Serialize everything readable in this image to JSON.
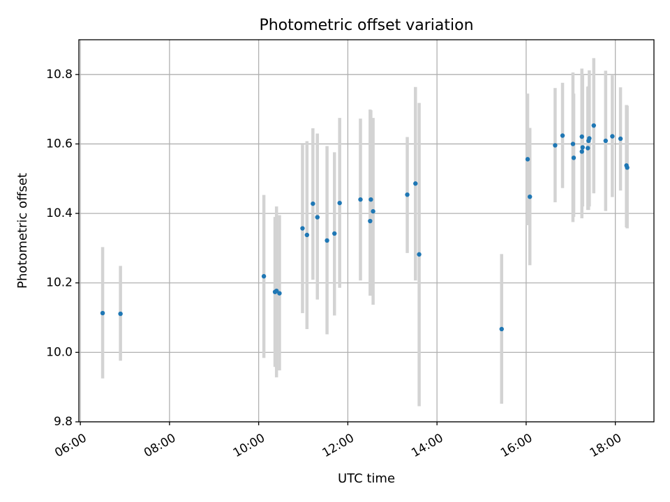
{
  "chart_data": {
    "type": "scatter",
    "title": "Photometric offset variation",
    "xlabel": "UTC time",
    "ylabel": "Photometric offset",
    "x_axis_type": "time",
    "xlim": [
      "05:58",
      "18:52"
    ],
    "ylim": [
      9.8,
      10.9
    ],
    "xticks": [
      "06:00",
      "08:00",
      "10:00",
      "12:00",
      "14:00",
      "16:00",
      "18:00"
    ],
    "yticks": [
      9.8,
      10.0,
      10.2,
      10.4,
      10.6,
      10.8
    ],
    "ytick_labels": [
      "9.8",
      "10.0",
      "10.2",
      "10.4",
      "10.6",
      "10.8"
    ],
    "grid": true,
    "legend": false,
    "colors": {
      "marker": "#1f77b4",
      "errorbar": "#d3d3d3",
      "grid": "#b0b0b0"
    },
    "points": [
      {
        "x": "06:30",
        "y": 10.113,
        "low": 9.925,
        "high": 10.303
      },
      {
        "x": "06:54",
        "y": 10.111,
        "low": 9.976,
        "high": 10.249
      },
      {
        "x": "10:07",
        "y": 10.219,
        "low": 9.984,
        "high": 10.453
      },
      {
        "x": "10:22",
        "y": 10.174,
        "low": 9.958,
        "high": 10.39
      },
      {
        "x": "10:24",
        "y": 10.177,
        "low": 9.928,
        "high": 10.42
      },
      {
        "x": "10:28",
        "y": 10.17,
        "low": 9.948,
        "high": 10.395
      },
      {
        "x": "10:59",
        "y": 10.357,
        "low": 10.113,
        "high": 10.598
      },
      {
        "x": "11:05",
        "y": 10.338,
        "low": 10.067,
        "high": 10.608
      },
      {
        "x": "11:13",
        "y": 10.428,
        "low": 10.209,
        "high": 10.645
      },
      {
        "x": "11:19",
        "y": 10.389,
        "low": 10.152,
        "high": 10.63
      },
      {
        "x": "11:32",
        "y": 10.322,
        "low": 10.052,
        "high": 10.594
      },
      {
        "x": "11:42",
        "y": 10.342,
        "low": 10.106,
        "high": 10.576
      },
      {
        "x": "11:49",
        "y": 10.43,
        "low": 10.186,
        "high": 10.675
      },
      {
        "x": "12:17",
        "y": 10.44,
        "low": 10.207,
        "high": 10.673
      },
      {
        "x": "12:30",
        "y": 10.378,
        "low": 10.163,
        "high": 10.699
      },
      {
        "x": "12:31",
        "y": 10.44,
        "low": 10.178,
        "high": 10.697
      },
      {
        "x": "12:34",
        "y": 10.406,
        "low": 10.137,
        "high": 10.675
      },
      {
        "x": "13:20",
        "y": 10.454,
        "low": 10.286,
        "high": 10.62
      },
      {
        "x": "13:31",
        "y": 10.486,
        "low": 10.207,
        "high": 10.764
      },
      {
        "x": "13:36",
        "y": 10.282,
        "low": 9.845,
        "high": 10.718
      },
      {
        "x": "15:27",
        "y": 10.067,
        "low": 9.852,
        "high": 10.283
      },
      {
        "x": "16:02",
        "y": 10.556,
        "low": 10.366,
        "high": 10.745
      },
      {
        "x": "16:05",
        "y": 10.448,
        "low": 10.251,
        "high": 10.646
      },
      {
        "x": "16:39",
        "y": 10.596,
        "low": 10.432,
        "high": 10.761
      },
      {
        "x": "16:49",
        "y": 10.624,
        "low": 10.473,
        "high": 10.776
      },
      {
        "x": "17:03",
        "y": 10.6,
        "low": 10.375,
        "high": 10.806
      },
      {
        "x": "17:04",
        "y": 10.56,
        "low": 10.39,
        "high": 10.745
      },
      {
        "x": "17:15",
        "y": 10.578,
        "low": 10.386,
        "high": 10.79
      },
      {
        "x": "17:15",
        "y": 10.621,
        "low": 10.426,
        "high": 10.817
      },
      {
        "x": "17:16",
        "y": 10.59,
        "low": 10.42,
        "high": 10.8
      },
      {
        "x": "17:23",
        "y": 10.588,
        "low": 10.41,
        "high": 10.765
      },
      {
        "x": "17:24",
        "y": 10.609,
        "low": 10.41,
        "high": 10.766
      },
      {
        "x": "17:25",
        "y": 10.616,
        "low": 10.42,
        "high": 10.812
      },
      {
        "x": "17:31",
        "y": 10.653,
        "low": 10.458,
        "high": 10.847
      },
      {
        "x": "17:47",
        "y": 10.609,
        "low": 10.407,
        "high": 10.811
      },
      {
        "x": "17:56",
        "y": 10.622,
        "low": 10.447,
        "high": 10.8
      },
      {
        "x": "18:07",
        "y": 10.615,
        "low": 10.466,
        "high": 10.763
      },
      {
        "x": "18:15",
        "y": 10.538,
        "low": 10.36,
        "high": 10.712
      },
      {
        "x": "18:16",
        "y": 10.532,
        "low": 10.357,
        "high": 10.71
      }
    ]
  }
}
